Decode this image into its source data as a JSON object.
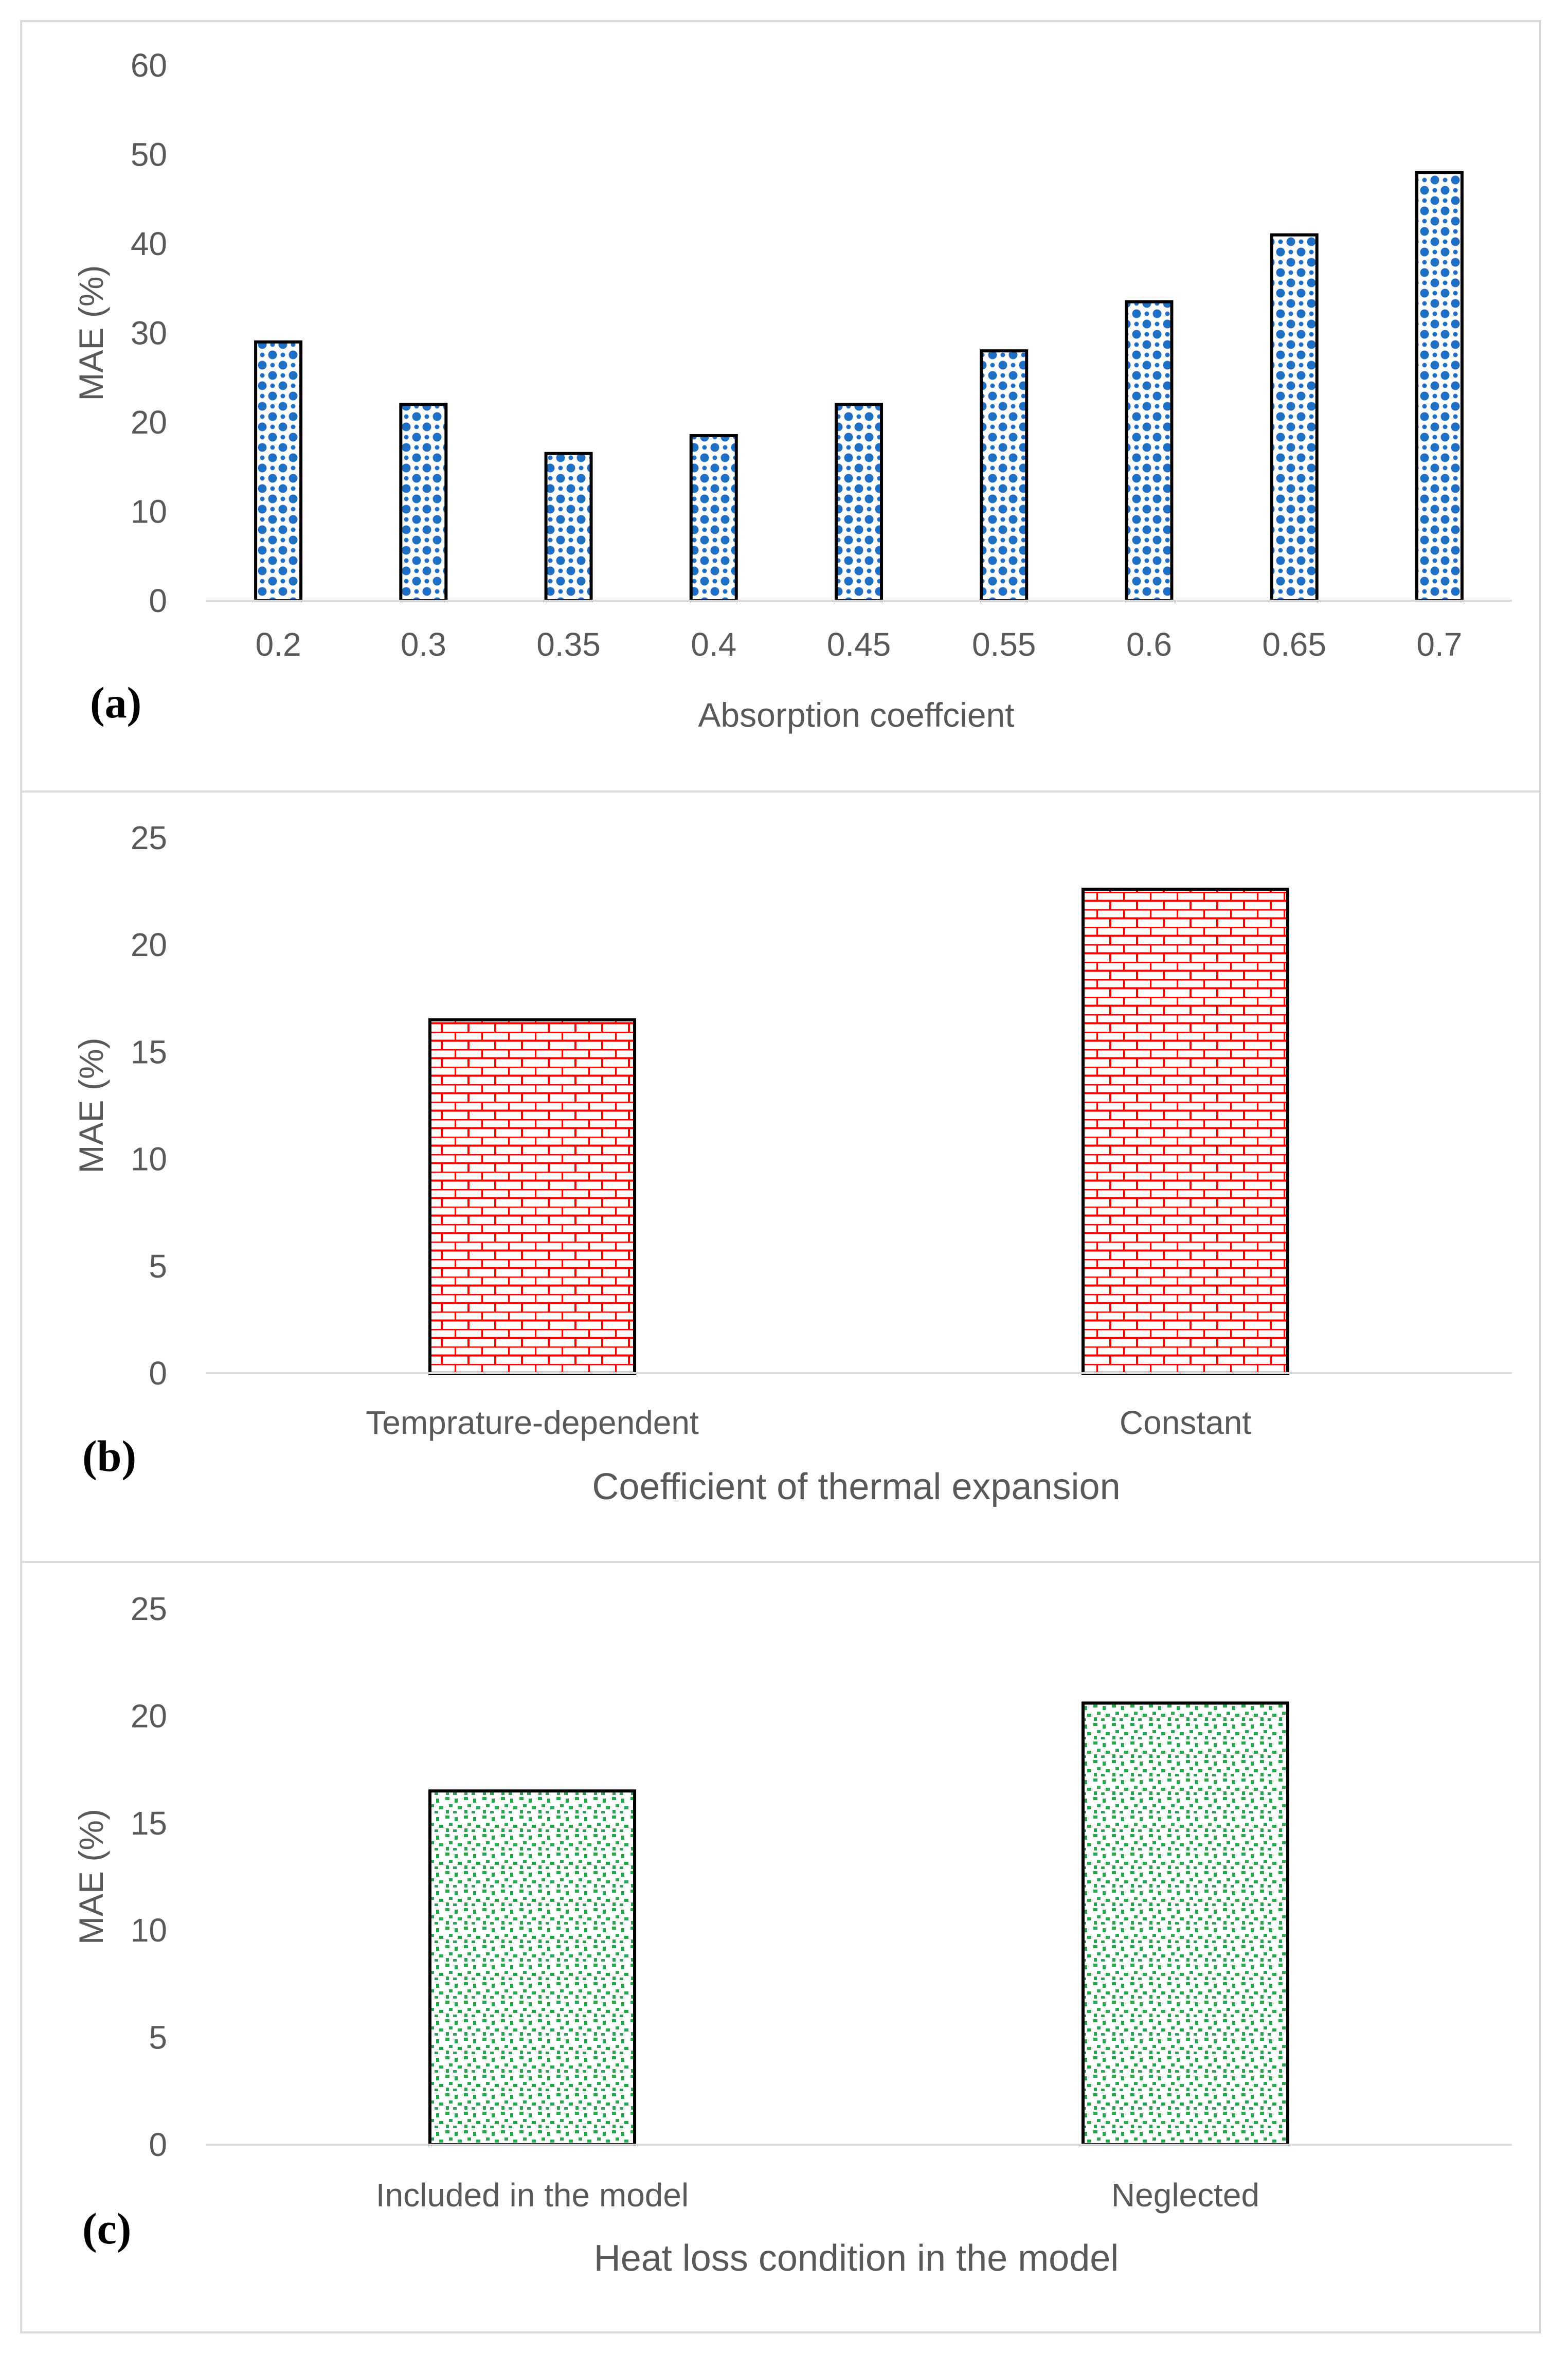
{
  "colors": {
    "panel_border": "#d9d9d9",
    "axis_line": "#d9d9d9",
    "tick_text": "#595959",
    "bar_outline": "#000000",
    "blue": "#1f6fc5",
    "red": "#ff0000",
    "green": "#22aa4a"
  },
  "chart_data": [
    {
      "type": "bar",
      "panel_label": "(a)",
      "title": "",
      "xlabel": "Absorption coeffcient",
      "ylabel": "MAE (%)",
      "ylim": [
        0,
        60
      ],
      "yticks": [
        0,
        10,
        20,
        30,
        40,
        50,
        60
      ],
      "grid": false,
      "legend": "none",
      "pattern": "dots",
      "color": "#1f6fc5",
      "categories": [
        "0.2",
        "0.3",
        "0.35",
        "0.4",
        "0.45",
        "0.55",
        "0.6",
        "0.65",
        "0.7"
      ],
      "values": [
        29,
        22,
        16.5,
        18.5,
        22,
        28,
        33.5,
        41,
        48
      ]
    },
    {
      "type": "bar",
      "panel_label": "(b)",
      "title": "",
      "xlabel": "Coefficient of thermal expansion",
      "ylabel": "MAE (%)",
      "ylim": [
        0,
        25
      ],
      "yticks": [
        0,
        5,
        10,
        15,
        20,
        25
      ],
      "grid": false,
      "legend": "none",
      "pattern": "bricks",
      "color": "#ff0000",
      "categories": [
        "Temprature-dependent",
        "Constant"
      ],
      "values": [
        16.5,
        22.6
      ]
    },
    {
      "type": "bar",
      "panel_label": "(c)",
      "title": "",
      "xlabel": "Heat loss condition in the model",
      "ylabel": "MAE (%)",
      "ylim": [
        0,
        25
      ],
      "yticks": [
        0,
        5,
        10,
        15,
        20,
        25
      ],
      "grid": false,
      "legend": "none",
      "pattern": "confetti",
      "color": "#22aa4a",
      "categories": [
        "Included in the model",
        "Neglected"
      ],
      "values": [
        16.5,
        20.6
      ]
    }
  ]
}
